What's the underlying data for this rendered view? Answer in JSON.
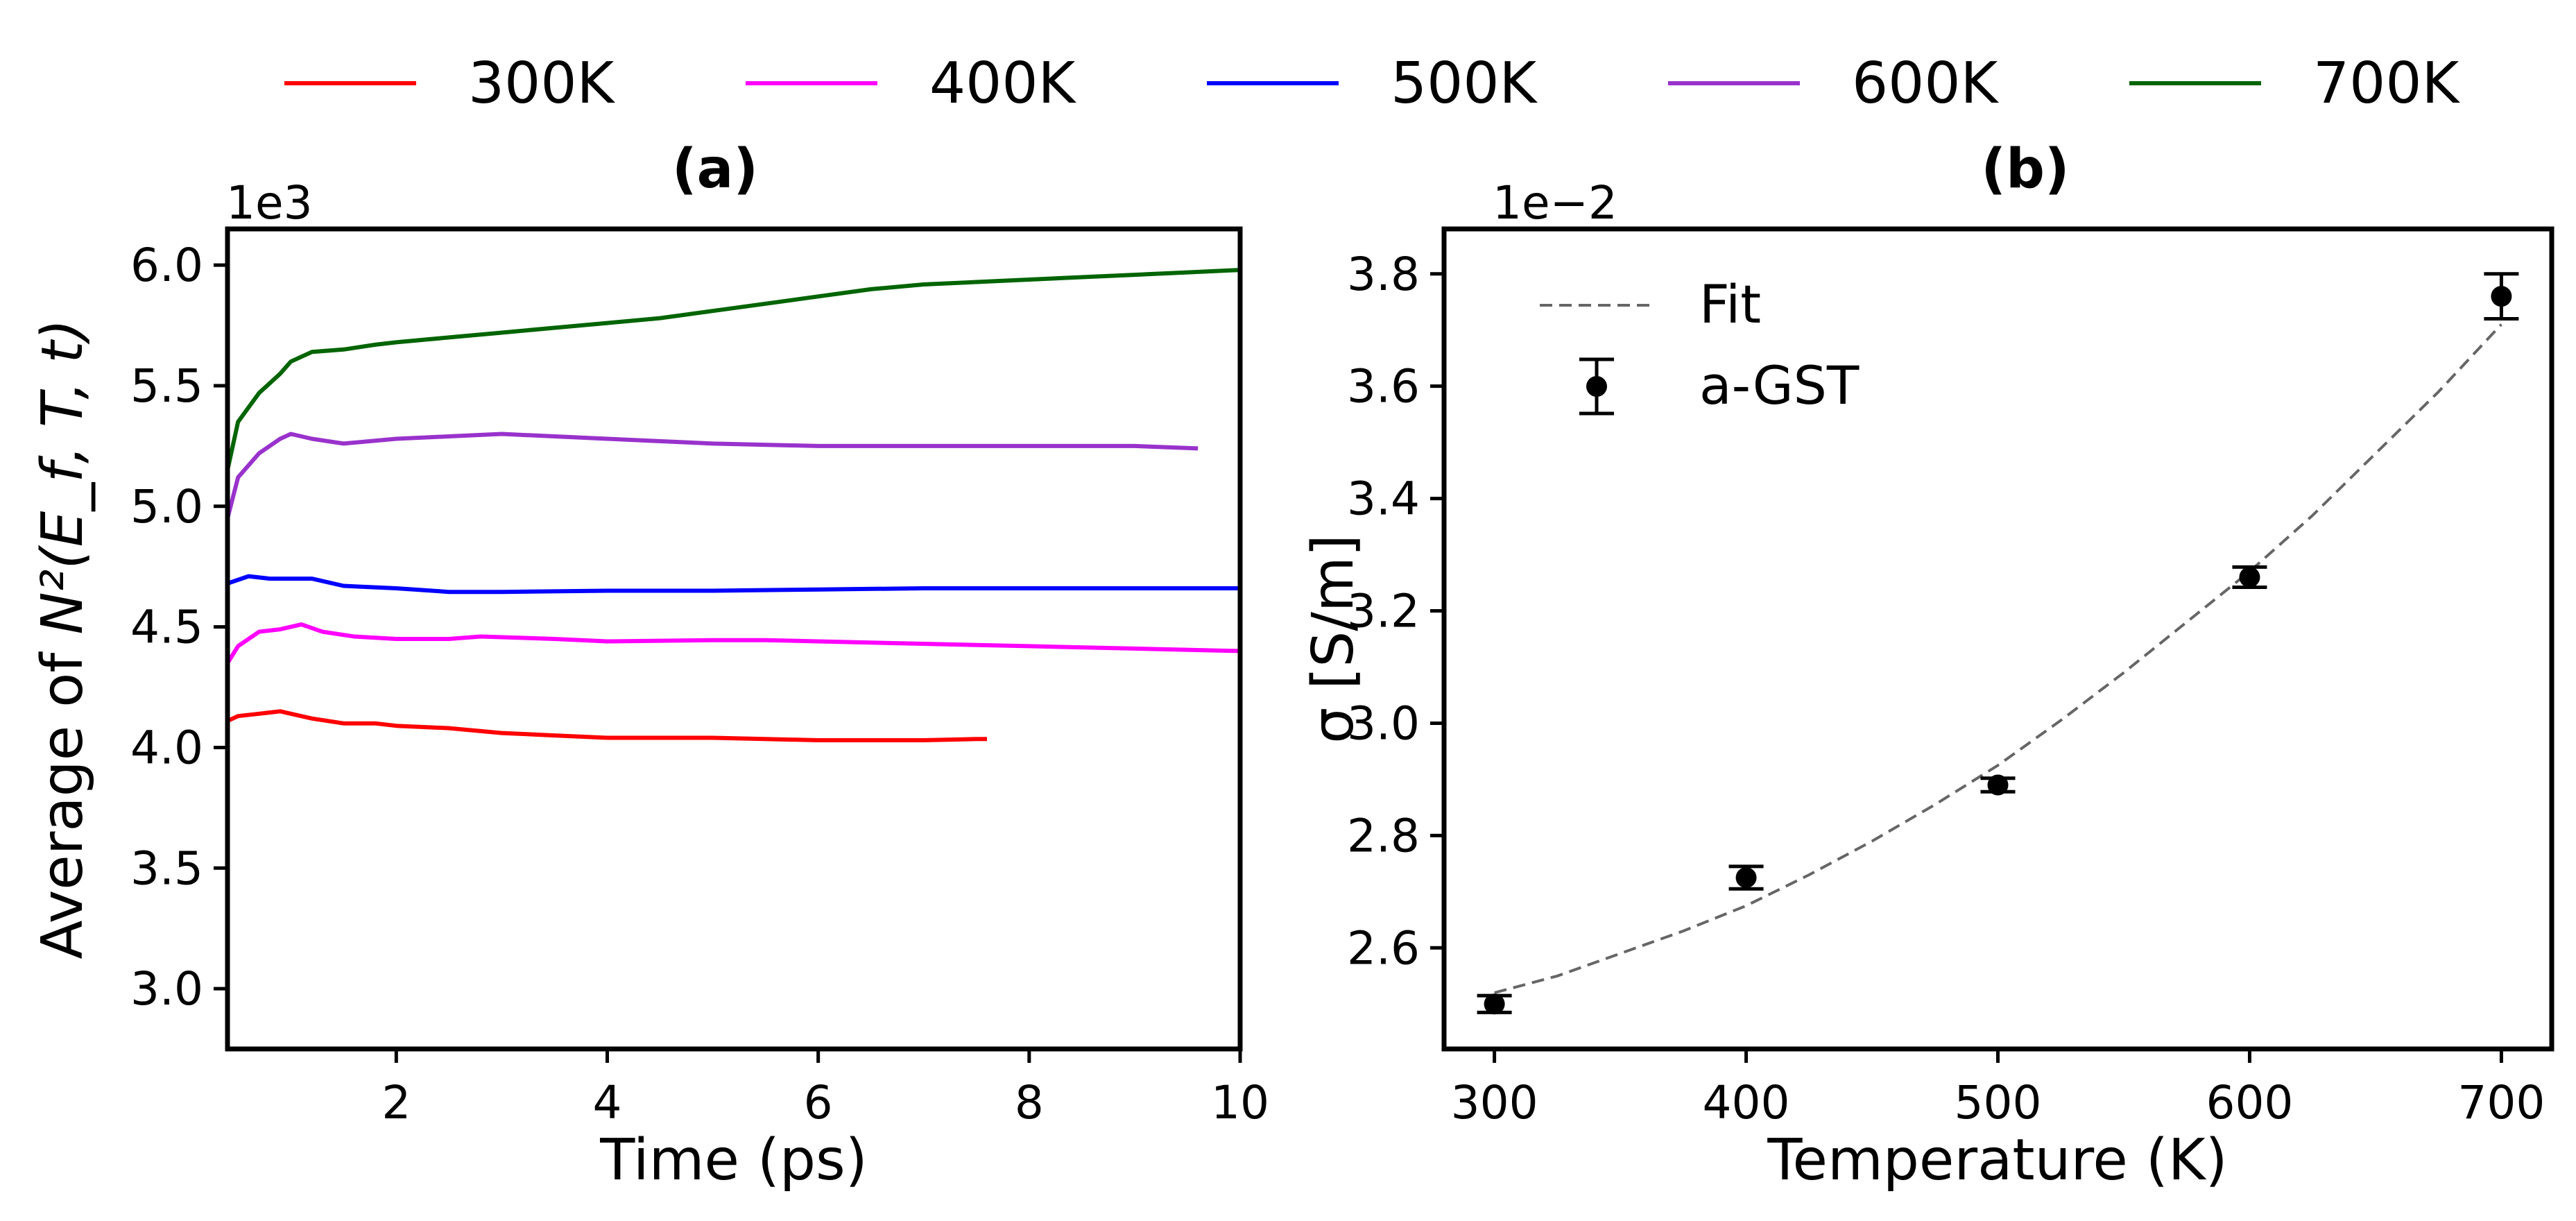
{
  "legend": {
    "entries": [
      {
        "label": "300K",
        "color": "#ff0000"
      },
      {
        "label": "400K",
        "color": "#ff00ff"
      },
      {
        "label": "500K",
        "color": "#0000ff"
      },
      {
        "label": "600K",
        "color": "#9932cc"
      },
      {
        "label": "700K",
        "color": "#006400"
      }
    ]
  },
  "chart_data": [
    {
      "type": "line",
      "title": "(a)",
      "xlabel": "Time (ps)",
      "ylabel_prefix": "Average of ",
      "ylabel_math": "N²(E_f, T, t)",
      "offset_label": "1e3",
      "xlim": [
        0.4,
        10
      ],
      "ylim": [
        2.75,
        6.15
      ],
      "xticks": [
        2,
        4,
        6,
        8,
        10
      ],
      "xtick_labels": [
        "2",
        "4",
        "6",
        "8",
        "10"
      ],
      "yticks": [
        3.0,
        3.5,
        4.0,
        4.5,
        5.0,
        5.5,
        6.0
      ],
      "ytick_labels": [
        "3.0",
        "3.5",
        "4.0",
        "4.5",
        "5.0",
        "5.5",
        "6.0"
      ],
      "series": [
        {
          "name": "300K",
          "color": "#ff0000",
          "x": [
            0.4,
            0.5,
            0.7,
            0.9,
            1.0,
            1.2,
            1.5,
            1.8,
            2.0,
            2.5,
            3.0,
            3.5,
            4.0,
            4.5,
            5.0,
            5.5,
            6.0,
            6.5,
            7.0,
            7.5,
            7.6
          ],
          "y": [
            4.11,
            4.13,
            4.14,
            4.15,
            4.14,
            4.12,
            4.1,
            4.1,
            4.09,
            4.08,
            4.06,
            4.05,
            4.04,
            4.04,
            4.04,
            4.035,
            4.03,
            4.03,
            4.03,
            4.035,
            4.035
          ]
        },
        {
          "name": "400K",
          "color": "#ff00ff",
          "x": [
            0.4,
            0.5,
            0.7,
            0.9,
            1.1,
            1.3,
            1.6,
            2.0,
            2.5,
            2.8,
            3.5,
            4.0,
            5.0,
            5.5,
            6.0,
            7.0,
            8.0,
            9.0,
            10.0
          ],
          "y": [
            4.35,
            4.42,
            4.48,
            4.49,
            4.51,
            4.48,
            4.46,
            4.45,
            4.45,
            4.46,
            4.45,
            4.44,
            4.445,
            4.445,
            4.44,
            4.43,
            4.42,
            4.41,
            4.4
          ]
        },
        {
          "name": "500K",
          "color": "#0000ff",
          "x": [
            0.4,
            0.6,
            0.8,
            1.0,
            1.2,
            1.5,
            2.0,
            2.5,
            3.0,
            4.0,
            5.0,
            6.0,
            7.0,
            8.0,
            9.0,
            10.0
          ],
          "y": [
            4.68,
            4.71,
            4.7,
            4.7,
            4.7,
            4.67,
            4.66,
            4.645,
            4.645,
            4.65,
            4.65,
            4.655,
            4.66,
            4.66,
            4.66,
            4.66
          ]
        },
        {
          "name": "600K",
          "color": "#9932cc",
          "x": [
            0.4,
            0.5,
            0.7,
            0.9,
            1.0,
            1.2,
            1.5,
            2.0,
            2.5,
            3.0,
            3.5,
            4.0,
            5.0,
            6.0,
            7.0,
            8.0,
            9.0,
            9.6
          ],
          "y": [
            4.95,
            5.12,
            5.22,
            5.28,
            5.3,
            5.28,
            5.26,
            5.28,
            5.29,
            5.3,
            5.29,
            5.28,
            5.26,
            5.25,
            5.25,
            5.25,
            5.25,
            5.24
          ]
        },
        {
          "name": "700K",
          "color": "#006400",
          "x": [
            0.4,
            0.5,
            0.7,
            0.9,
            1.0,
            1.2,
            1.5,
            1.8,
            2.0,
            2.5,
            3.0,
            3.5,
            4.0,
            4.5,
            5.0,
            5.5,
            6.0,
            6.5,
            7.0,
            7.5,
            8.0,
            8.5,
            9.0,
            9.5,
            10.0
          ],
          "y": [
            5.15,
            5.35,
            5.47,
            5.55,
            5.6,
            5.64,
            5.65,
            5.67,
            5.68,
            5.7,
            5.72,
            5.74,
            5.76,
            5.78,
            5.81,
            5.84,
            5.87,
            5.9,
            5.92,
            5.93,
            5.94,
            5.95,
            5.96,
            5.97,
            5.98
          ]
        }
      ]
    },
    {
      "type": "scatter",
      "title": "(b)",
      "xlabel": "Temperature (K)",
      "ylabel": "σ [S/m]",
      "offset_label": "1e−2",
      "xlim": [
        280,
        720
      ],
      "ylim": [
        2.42,
        3.88
      ],
      "xticks": [
        300,
        400,
        500,
        600,
        700
      ],
      "xtick_labels": [
        "300",
        "400",
        "500",
        "600",
        "700"
      ],
      "yticks": [
        2.6,
        2.8,
        3.0,
        3.2,
        3.4,
        3.6,
        3.8
      ],
      "ytick_labels": [
        "2.6",
        "2.8",
        "3.0",
        "3.2",
        "3.4",
        "3.6",
        "3.8"
      ],
      "legend_fit": "Fit",
      "legend_data": "a-GST",
      "points": {
        "x": [
          300,
          400,
          500,
          600,
          700
        ],
        "y": [
          2.5,
          2.725,
          2.89,
          3.26,
          3.76
        ],
        "err": [
          0.015,
          0.02,
          0.012,
          0.018,
          0.04
        ]
      },
      "fit": {
        "x": [
          300,
          325,
          350,
          375,
          400,
          425,
          450,
          475,
          500,
          525,
          550,
          575,
          600,
          625,
          650,
          675,
          700
        ],
        "y": [
          2.52,
          2.55,
          2.59,
          2.63,
          2.675,
          2.73,
          2.79,
          2.855,
          2.925,
          3.005,
          3.09,
          3.18,
          3.27,
          3.37,
          3.48,
          3.59,
          3.71
        ]
      }
    }
  ]
}
